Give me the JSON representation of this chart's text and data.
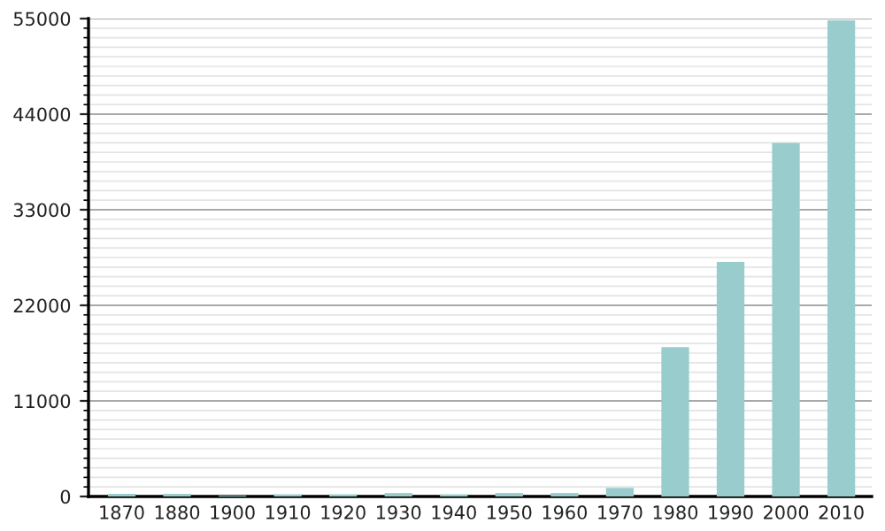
{
  "chart_data": {
    "type": "bar",
    "categories": [
      "1870",
      "1880",
      "1900",
      "1910",
      "1920",
      "1930",
      "1940",
      "1950",
      "1960",
      "1970",
      "1980",
      "1990",
      "2000",
      "2010"
    ],
    "values": [
      300,
      300,
      100,
      250,
      250,
      400,
      250,
      400,
      400,
      1000,
      17200,
      27000,
      40700,
      54800
    ],
    "color": "#99cccc",
    "ylim": [
      0,
      55000
    ],
    "yticks": [
      0,
      11000,
      22000,
      33000,
      44000,
      55000
    ],
    "grid": "y"
  }
}
